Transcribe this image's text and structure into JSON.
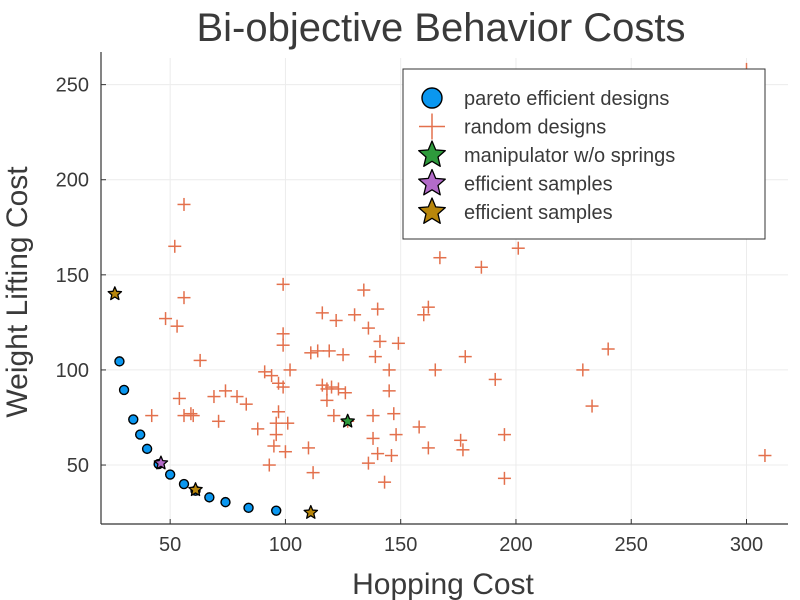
{
  "chart_data": {
    "type": "scatter",
    "title": "Bi-objective Behavior Costs",
    "xlabel": "Hopping Cost",
    "ylabel": "Weight Lifting Cost",
    "xlim": [
      20,
      318
    ],
    "ylim": [
      19,
      264
    ],
    "xticks": [
      50,
      100,
      150,
      200,
      250,
      300
    ],
    "yticks": [
      50,
      100,
      150,
      200,
      250
    ],
    "grid": true,
    "legend_position": "top-right",
    "series": [
      {
        "name": "pareto efficient designs",
        "marker": "circle",
        "color": "#0a97f0",
        "points": [
          [
            28,
            104.5
          ],
          [
            30,
            89.5
          ],
          [
            34,
            74
          ],
          [
            37,
            66
          ],
          [
            40,
            58.5
          ],
          [
            45,
            50.5
          ],
          [
            50,
            45
          ],
          [
            56,
            40
          ],
          [
            61,
            36.5
          ],
          [
            67,
            33
          ],
          [
            74,
            30.5
          ],
          [
            84,
            27.5
          ],
          [
            96,
            26
          ]
        ]
      },
      {
        "name": "random designs",
        "marker": "cross",
        "color": "#e3704c",
        "points": [
          [
            56,
            187
          ],
          [
            99,
            145
          ],
          [
            52,
            165
          ],
          [
            56,
            138
          ],
          [
            53,
            123
          ],
          [
            48,
            127
          ],
          [
            63,
            105
          ],
          [
            74,
            89
          ],
          [
            42,
            76
          ],
          [
            54,
            85
          ],
          [
            56,
            76
          ],
          [
            59,
            77
          ],
          [
            60,
            76
          ],
          [
            69,
            86
          ],
          [
            71,
            73
          ],
          [
            79,
            86
          ],
          [
            83,
            82
          ],
          [
            88,
            69
          ],
          [
            91,
            99
          ],
          [
            94,
            97
          ],
          [
            93,
            50
          ],
          [
            95,
            60
          ],
          [
            96,
            66
          ],
          [
            96,
            72
          ],
          [
            97,
            78
          ],
          [
            97,
            93
          ],
          [
            99,
            91
          ],
          [
            99,
            113
          ],
          [
            99,
            119
          ],
          [
            100,
            57
          ],
          [
            102,
            100
          ],
          [
            101,
            72
          ],
          [
            110,
            59
          ],
          [
            112,
            46
          ],
          [
            111,
            109
          ],
          [
            114,
            110
          ],
          [
            116,
            92
          ],
          [
            116,
            130
          ],
          [
            118,
            84
          ],
          [
            118,
            90
          ],
          [
            119,
            110
          ],
          [
            120,
            91
          ],
          [
            121,
            76
          ],
          [
            123,
            90
          ],
          [
            122,
            126
          ],
          [
            125,
            108
          ],
          [
            126,
            88
          ],
          [
            127,
            73
          ],
          [
            130,
            129
          ],
          [
            134,
            142
          ],
          [
            136,
            122
          ],
          [
            136,
            51
          ],
          [
            138,
            64
          ],
          [
            138,
            76
          ],
          [
            139,
            107
          ],
          [
            140,
            132
          ],
          [
            140,
            56
          ],
          [
            141,
            115
          ],
          [
            143,
            41
          ],
          [
            145,
            100
          ],
          [
            145,
            89
          ],
          [
            146,
            55
          ],
          [
            147,
            77
          ],
          [
            148,
            66
          ],
          [
            149,
            114
          ],
          [
            158,
            70
          ],
          [
            160,
            129
          ],
          [
            162,
            133
          ],
          [
            162,
            59
          ],
          [
            165,
            100
          ],
          [
            167,
            159
          ],
          [
            176,
            63
          ],
          [
            177,
            58
          ],
          [
            178,
            107
          ],
          [
            185,
            154
          ],
          [
            191,
            95
          ],
          [
            195,
            66
          ],
          [
            195,
            43
          ],
          [
            201,
            164
          ],
          [
            229,
            100
          ],
          [
            233,
            81
          ],
          [
            240,
            111
          ],
          [
            300,
            258
          ],
          [
            308,
            55
          ]
        ]
      },
      {
        "name": "manipulator w/o springs",
        "marker": "star",
        "color": "#2e9a3c",
        "points": [
          [
            127,
            73
          ]
        ]
      },
      {
        "name": "efficient samples",
        "marker": "star",
        "color": "#b36bc9",
        "points": [
          [
            46,
            51
          ]
        ]
      },
      {
        "name": "efficient samples",
        "marker": "star",
        "color": "#b8860b",
        "points": [
          [
            26,
            140
          ],
          [
            61,
            37
          ],
          [
            111,
            25
          ]
        ]
      }
    ]
  }
}
